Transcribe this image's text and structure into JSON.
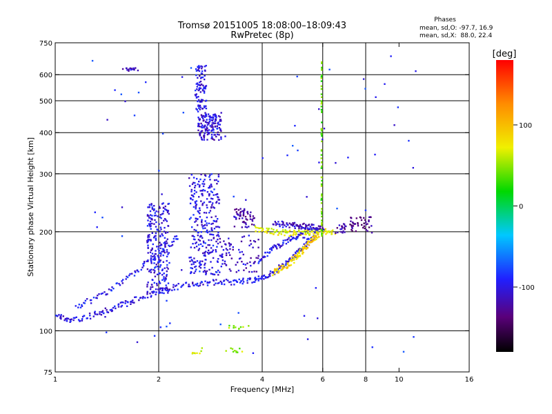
{
  "chart_data": {
    "type": "scatter",
    "title": "Tromsø 20151005 18:08:00–18:09:43",
    "subtitle": "RwPretec (8p)",
    "xlabel": "Frequency [MHz]",
    "ylabel": "Stationary phase Virtual Height [km]",
    "x_scale": "log",
    "y_scale": "log",
    "xlim": [
      1,
      16
    ],
    "ylim": [
      75,
      750
    ],
    "x_ticks": [
      1,
      2,
      4,
      6,
      8,
      10,
      16
    ],
    "x_tick_labels": [
      "1",
      "2",
      "4",
      "6",
      "8",
      "10",
      "16"
    ],
    "x_gridlines": [
      2,
      4,
      6,
      8
    ],
    "y_ticks": [
      75,
      100,
      200,
      300,
      400,
      500,
      600,
      750
    ],
    "y_tick_labels": [
      "75",
      "100",
      "200",
      "300",
      "400",
      "500",
      "600",
      "750"
    ],
    "y_gridlines": [
      100,
      200,
      300,
      400,
      500,
      600
    ],
    "grid": true,
    "phase_info": {
      "title": "Phases",
      "line_o": "mean, sd,O: -97.7, 16.9",
      "line_x": "mean, sd,X:  88.0, 22.4"
    },
    "colorbar": {
      "label": "[deg]",
      "range": [
        -180,
        180
      ],
      "tick_values": [
        100,
        0,
        -100
      ],
      "tick_labels": [
        "100",
        "0",
        "-100"
      ]
    },
    "traces": [
      {
        "kind": "curve",
        "phase": -100,
        "points": [
          [
            1.0,
            111
          ],
          [
            1.1,
            107
          ],
          [
            1.3,
            112
          ],
          [
            1.5,
            118
          ],
          [
            1.7,
            124
          ],
          [
            2.0,
            132
          ],
          [
            2.4,
            138
          ],
          [
            2.8,
            140
          ],
          [
            3.3,
            141
          ],
          [
            3.8,
            143
          ],
          [
            4.2,
            148
          ],
          [
            4.6,
            158
          ],
          [
            5.0,
            170
          ],
          [
            5.4,
            185
          ],
          [
            5.8,
            197
          ]
        ]
      },
      {
        "kind": "curve",
        "phase": 90,
        "points": [
          [
            4.3,
            150
          ],
          [
            4.7,
            158
          ],
          [
            5.0,
            167
          ],
          [
            5.3,
            178
          ],
          [
            5.6,
            190
          ],
          [
            5.85,
            198
          ]
        ]
      },
      {
        "kind": "curve",
        "phase": 70,
        "points": [
          [
            3.8,
            205
          ],
          [
            4.3,
            200
          ],
          [
            4.8,
            198
          ],
          [
            5.3,
            199
          ],
          [
            5.9,
            200
          ],
          [
            6.5,
            200
          ]
        ]
      },
      {
        "kind": "curve",
        "phase": -110,
        "points": [
          [
            4.3,
            212
          ],
          [
            4.8,
            210
          ],
          [
            5.2,
            208
          ],
          [
            5.6,
            207
          ],
          [
            6.0,
            205
          ]
        ]
      },
      {
        "kind": "curve",
        "phase": -100,
        "points": [
          [
            3.9,
            163
          ],
          [
            4.3,
            178
          ],
          [
            4.8,
            190
          ],
          [
            5.3,
            196
          ]
        ]
      },
      {
        "kind": "curve",
        "phase": -95,
        "points": [
          [
            1.15,
            118
          ],
          [
            1.4,
            130
          ],
          [
            1.7,
            150
          ],
          [
            2.0,
            172
          ],
          [
            2.3,
            195
          ]
        ]
      },
      {
        "kind": "cloud",
        "phase": -100,
        "x": [
          1.85,
          2.15
        ],
        "y": [
          130,
          245
        ],
        "n": 240
      },
      {
        "kind": "cloud",
        "phase": -100,
        "x": [
          2.45,
          3.0
        ],
        "y": [
          148,
          300
        ],
        "n": 280
      },
      {
        "kind": "cloud",
        "phase": -105,
        "x": [
          2.6,
          3.05
        ],
        "y": [
          380,
          460
        ],
        "n": 150
      },
      {
        "kind": "cloud",
        "phase": -100,
        "x": [
          2.55,
          2.75
        ],
        "y": [
          460,
          640
        ],
        "n": 90
      },
      {
        "kind": "cloud",
        "phase": -120,
        "x": [
          3.3,
          3.8
        ],
        "y": [
          205,
          235
        ],
        "n": 55
      },
      {
        "kind": "cloud",
        "phase": -110,
        "x": [
          3.0,
          3.9
        ],
        "y": [
          150,
          195
        ],
        "n": 80
      },
      {
        "kind": "cloud",
        "phase": -110,
        "x": [
          1.55,
          1.75
        ],
        "y": [
          615,
          630
        ],
        "n": 16
      },
      {
        "kind": "cloud",
        "phase": -130,
        "x": [
          7.2,
          8.4
        ],
        "y": [
          198,
          222
        ],
        "n": 45
      },
      {
        "kind": "cloud",
        "phase": -120,
        "x": [
          6.5,
          7.1
        ],
        "y": [
          198,
          212
        ],
        "n": 20
      },
      {
        "kind": "vline",
        "phase": 40,
        "x": 5.95,
        "y": [
          190,
          660
        ],
        "n": 70
      },
      {
        "kind": "cloud",
        "phase": 50,
        "x": [
          3.1,
          3.5
        ],
        "y": [
          86,
          89
        ],
        "n": 10
      },
      {
        "kind": "cloud",
        "phase": 60,
        "x": [
          2.5,
          2.7
        ],
        "y": [
          85,
          89
        ],
        "n": 8
      },
      {
        "kind": "cloud",
        "phase": 50,
        "x": [
          3.2,
          3.7
        ],
        "y": [
          101,
          104
        ],
        "n": 10
      },
      {
        "kind": "cloud",
        "phase": -90,
        "x": [
          1.2,
          12.5
        ],
        "y": [
          80,
          700
        ],
        "n": 80
      }
    ]
  }
}
